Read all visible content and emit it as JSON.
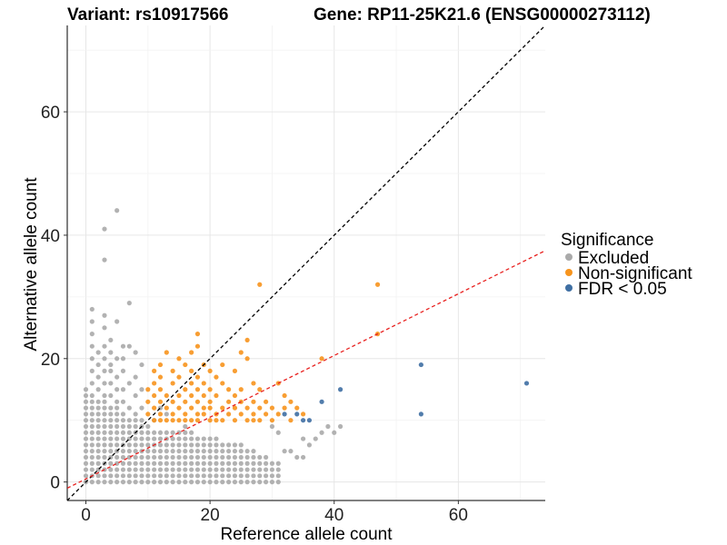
{
  "title": {
    "variant": "Variant: rs10917566",
    "gene": "Gene: RP11-25K21.6 (ENSG00000273112)"
  },
  "chart_data": {
    "type": "scatter",
    "xlabel": "Reference allele count",
    "ylabel": "Alternative allele count",
    "xlim": [
      -3,
      74
    ],
    "ylim": [
      -3,
      74
    ],
    "xticks": [
      0,
      20,
      40,
      60
    ],
    "yticks": [
      0,
      20,
      40,
      60
    ],
    "grid": true,
    "legend": {
      "title": "Significance",
      "position": "right",
      "entries": [
        {
          "label": "Excluded",
          "color": "#aaaaaa"
        },
        {
          "label": "Non-significant",
          "color": "#f7941d"
        },
        {
          "label": "FDR < 0.05",
          "color": "#3f6fa3"
        }
      ]
    },
    "reference_lines": [
      {
        "name": "identity",
        "slope": 1,
        "intercept": 0,
        "color": "#000000",
        "dash": "dashed"
      },
      {
        "name": "fit",
        "slope": 0.5,
        "intercept": 0.5,
        "color": "#e8211f",
        "dash": "dashed"
      }
    ],
    "series": [
      {
        "category": "Excluded",
        "color": "#aaaaaa",
        "grid_ranges": [
          [
            0,
            1,
            0,
            12
          ],
          [
            2,
            3,
            0,
            11
          ],
          [
            4,
            5,
            0,
            10
          ],
          [
            6,
            7,
            0,
            9
          ],
          [
            8,
            9,
            0,
            9
          ],
          [
            10,
            11,
            0,
            8
          ],
          [
            12,
            14,
            0,
            8
          ],
          [
            15,
            17,
            0,
            8
          ],
          [
            18,
            19,
            0,
            7
          ],
          [
            20,
            21,
            0,
            7
          ],
          [
            22,
            23,
            0,
            6
          ],
          [
            24,
            25,
            0,
            6
          ],
          [
            26,
            27,
            0,
            5
          ],
          [
            28,
            29,
            0,
            4
          ],
          [
            30,
            31,
            0,
            3
          ]
        ],
        "points": [
          [
            0,
            13
          ],
          [
            0,
            14
          ],
          [
            0,
            15
          ],
          [
            1,
            13
          ],
          [
            1,
            14
          ],
          [
            1,
            16
          ],
          [
            1,
            18
          ],
          [
            1,
            20
          ],
          [
            1,
            22
          ],
          [
            1,
            24
          ],
          [
            1,
            26
          ],
          [
            1,
            28
          ],
          [
            2,
            12
          ],
          [
            2,
            13
          ],
          [
            2,
            15
          ],
          [
            2,
            17
          ],
          [
            2,
            19
          ],
          [
            2,
            21
          ],
          [
            3,
            12
          ],
          [
            3,
            13
          ],
          [
            3,
            14
          ],
          [
            3,
            16
          ],
          [
            3,
            18
          ],
          [
            3,
            20
          ],
          [
            3,
            22
          ],
          [
            3,
            25
          ],
          [
            3,
            27
          ],
          [
            3,
            36
          ],
          [
            3,
            41
          ],
          [
            4,
            11
          ],
          [
            4,
            12
          ],
          [
            4,
            14
          ],
          [
            4,
            16
          ],
          [
            4,
            18
          ],
          [
            4,
            19
          ],
          [
            4,
            21
          ],
          [
            4,
            23
          ],
          [
            5,
            11
          ],
          [
            5,
            12
          ],
          [
            5,
            13
          ],
          [
            5,
            15
          ],
          [
            5,
            17
          ],
          [
            5,
            20
          ],
          [
            5,
            26
          ],
          [
            5,
            44
          ],
          [
            6,
            10
          ],
          [
            6,
            11
          ],
          [
            6,
            13
          ],
          [
            6,
            15
          ],
          [
            6,
            18
          ],
          [
            6,
            20
          ],
          [
            6,
            22
          ],
          [
            7,
            10
          ],
          [
            7,
            12
          ],
          [
            7,
            16
          ],
          [
            7,
            22
          ],
          [
            7,
            29
          ],
          [
            8,
            10
          ],
          [
            8,
            11
          ],
          [
            8,
            14
          ],
          [
            8,
            17
          ],
          [
            8,
            21
          ],
          [
            9,
            10
          ],
          [
            9,
            12
          ],
          [
            9,
            15
          ],
          [
            9,
            19
          ],
          [
            10,
            9
          ],
          [
            11,
            10
          ],
          [
            12,
            12
          ],
          [
            13,
            11
          ],
          [
            16,
            9
          ],
          [
            32,
            5
          ],
          [
            33,
            5
          ],
          [
            34,
            4
          ],
          [
            35,
            4
          ],
          [
            35,
            7
          ],
          [
            36,
            6
          ],
          [
            37,
            7
          ],
          [
            38,
            8
          ],
          [
            39,
            9
          ],
          [
            40,
            8
          ],
          [
            41,
            9
          ],
          [
            30,
            9
          ],
          [
            31,
            8
          ]
        ]
      },
      {
        "category": "Non-significant",
        "color": "#f7941d",
        "points": [
          [
            10,
            11
          ],
          [
            10,
            13
          ],
          [
            10,
            15
          ],
          [
            11,
            10
          ],
          [
            11,
            12
          ],
          [
            11,
            14
          ],
          [
            11,
            16
          ],
          [
            11,
            18
          ],
          [
            12,
            10
          ],
          [
            12,
            11
          ],
          [
            12,
            13
          ],
          [
            12,
            15
          ],
          [
            12,
            17
          ],
          [
            12,
            19
          ],
          [
            13,
            10
          ],
          [
            13,
            12
          ],
          [
            13,
            14
          ],
          [
            13,
            21
          ],
          [
            14,
            10
          ],
          [
            14,
            11
          ],
          [
            14,
            13
          ],
          [
            14,
            16
          ],
          [
            14,
            18
          ],
          [
            15,
            10
          ],
          [
            15,
            12
          ],
          [
            15,
            14
          ],
          [
            15,
            17
          ],
          [
            15,
            20
          ],
          [
            16,
            10
          ],
          [
            16,
            11
          ],
          [
            16,
            13
          ],
          [
            16,
            15
          ],
          [
            16,
            19
          ],
          [
            17,
            10
          ],
          [
            17,
            12
          ],
          [
            17,
            14
          ],
          [
            17,
            16
          ],
          [
            17,
            18
          ],
          [
            17,
            21
          ],
          [
            18,
            10
          ],
          [
            18,
            11
          ],
          [
            18,
            13
          ],
          [
            18,
            15
          ],
          [
            18,
            17
          ],
          [
            18,
            22
          ],
          [
            18,
            24
          ],
          [
            19,
            11
          ],
          [
            19,
            12
          ],
          [
            19,
            14
          ],
          [
            19,
            16
          ],
          [
            19,
            19
          ],
          [
            20,
            10
          ],
          [
            20,
            12
          ],
          [
            20,
            13
          ],
          [
            20,
            15
          ],
          [
            20,
            18
          ],
          [
            21,
            10
          ],
          [
            21,
            11
          ],
          [
            21,
            14
          ],
          [
            21,
            17
          ],
          [
            22,
            10
          ],
          [
            22,
            12
          ],
          [
            22,
            16
          ],
          [
            22,
            19
          ],
          [
            23,
            11
          ],
          [
            23,
            13
          ],
          [
            23,
            15
          ],
          [
            24,
            10
          ],
          [
            24,
            12
          ],
          [
            24,
            14
          ],
          [
            24,
            18
          ],
          [
            25,
            11
          ],
          [
            25,
            13
          ],
          [
            25,
            15
          ],
          [
            25,
            21
          ],
          [
            26,
            10
          ],
          [
            26,
            12
          ],
          [
            26,
            20
          ],
          [
            26,
            23
          ],
          [
            27,
            10
          ],
          [
            27,
            11
          ],
          [
            27,
            13
          ],
          [
            27,
            16
          ],
          [
            28,
            10
          ],
          [
            28,
            12
          ],
          [
            28,
            15
          ],
          [
            28,
            32
          ],
          [
            29,
            11
          ],
          [
            29,
            13
          ],
          [
            30,
            10
          ],
          [
            30,
            12
          ],
          [
            31,
            11
          ],
          [
            31,
            16
          ],
          [
            32,
            12
          ],
          [
            32,
            14
          ],
          [
            33,
            10
          ],
          [
            33,
            13
          ],
          [
            34,
            12
          ],
          [
            35,
            11
          ],
          [
            38,
            20
          ],
          [
            47,
            24
          ],
          [
            47,
            32
          ]
        ]
      },
      {
        "category": "FDR < 0.05",
        "color": "#3f6fa3",
        "points": [
          [
            32,
            11
          ],
          [
            34,
            11
          ],
          [
            35,
            10
          ],
          [
            36,
            10
          ],
          [
            38,
            13
          ],
          [
            41,
            15
          ],
          [
            54,
            19
          ],
          [
            54,
            11
          ],
          [
            71,
            16
          ]
        ]
      }
    ]
  }
}
